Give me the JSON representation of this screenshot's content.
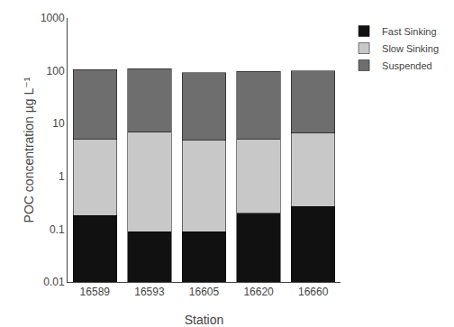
{
  "chart_data": {
    "type": "bar",
    "stacked": true,
    "log": "y",
    "grid": false,
    "legend": "upper right",
    "xlabel": "Station",
    "ylabel": "POC concentration µg L⁻¹",
    "categories": [
      "16589",
      "16593",
      "16605",
      "16620",
      "16660"
    ],
    "series": [
      {
        "name": "Fast Sinking",
        "color": "#111111",
        "values": [
          0.18,
          0.09,
          0.09,
          0.2,
          0.27
        ]
      },
      {
        "name": "Slow Sinking",
        "color": "#c8c8c8",
        "values": [
          4.8,
          6.9,
          4.7,
          4.8,
          6.3
        ]
      },
      {
        "name": "Suspended",
        "color": "#6e6e6e",
        "values": [
          100.0,
          103.0,
          88.0,
          93.0,
          92.5
        ]
      }
    ],
    "ylim": [
      0.01,
      1000
    ],
    "yticks": [
      0.01,
      0.1,
      1,
      10,
      100,
      1000
    ]
  }
}
